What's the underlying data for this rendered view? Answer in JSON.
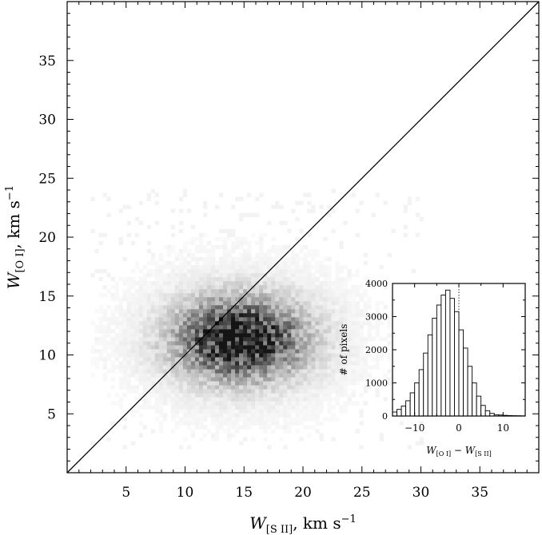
{
  "chart_data": [
    {
      "type": "scatter",
      "title": "",
      "xlabel": "W[S II], km s^-1",
      "ylabel": "W[O I], km s^-1",
      "xlabel_parts": {
        "sym": "W",
        "sub": "[S II]",
        "rest": ",   km s",
        "sup": "−1"
      },
      "ylabel_parts": {
        "sym": "W",
        "sub": "[O I]",
        "rest": ",   km s",
        "sup": "−1"
      },
      "xlim": [
        0,
        40
      ],
      "ylim": [
        0,
        40
      ],
      "xticks": [
        5,
        10,
        15,
        20,
        25,
        30,
        35
      ],
      "yticks": [
        5,
        10,
        15,
        20,
        25,
        30,
        35
      ],
      "grid": false,
      "density": {
        "description": "2D density of pixels, concentrated around W[S II] ~ 14, W[O I] ~ 11",
        "center": [
          14.5,
          11.2
        ],
        "spread": [
          3.5,
          2.2
        ],
        "peak": [
          16.5,
          11.0
        ]
      },
      "reference_line": {
        "label": "",
        "x": [
          0,
          40
        ],
        "y": [
          0,
          40
        ]
      }
    },
    {
      "type": "bar",
      "title": "",
      "xlabel": "W[O I] - W[S II]",
      "xlabel_parts": {
        "a": "W",
        "asub": "[O I]",
        "op": " − ",
        "b": "W",
        "bsub": "[S II]"
      },
      "ylabel": "# of pixels",
      "xlim": [
        -15,
        15
      ],
      "ylim": [
        0,
        4000
      ],
      "xticks": [
        -10,
        0,
        10
      ],
      "yticks": [
        0,
        1000,
        2000,
        3000,
        4000
      ],
      "bin_width": 1,
      "bin_starts": [
        -15,
        -14,
        -13,
        -12,
        -11,
        -10,
        -9,
        -8,
        -7,
        -6,
        -5,
        -4,
        -3,
        -2,
        -1,
        0,
        1,
        2,
        3,
        4,
        5,
        6,
        7,
        8,
        9,
        10,
        11,
        12,
        13,
        14
      ],
      "values": [
        120,
        200,
        300,
        460,
        700,
        1000,
        1400,
        1900,
        2450,
        2950,
        3350,
        3650,
        3800,
        3550,
        3150,
        2600,
        2050,
        1500,
        1000,
        600,
        320,
        160,
        80,
        40,
        30,
        20,
        15,
        10,
        8,
        5
      ],
      "vline": 0
    }
  ]
}
